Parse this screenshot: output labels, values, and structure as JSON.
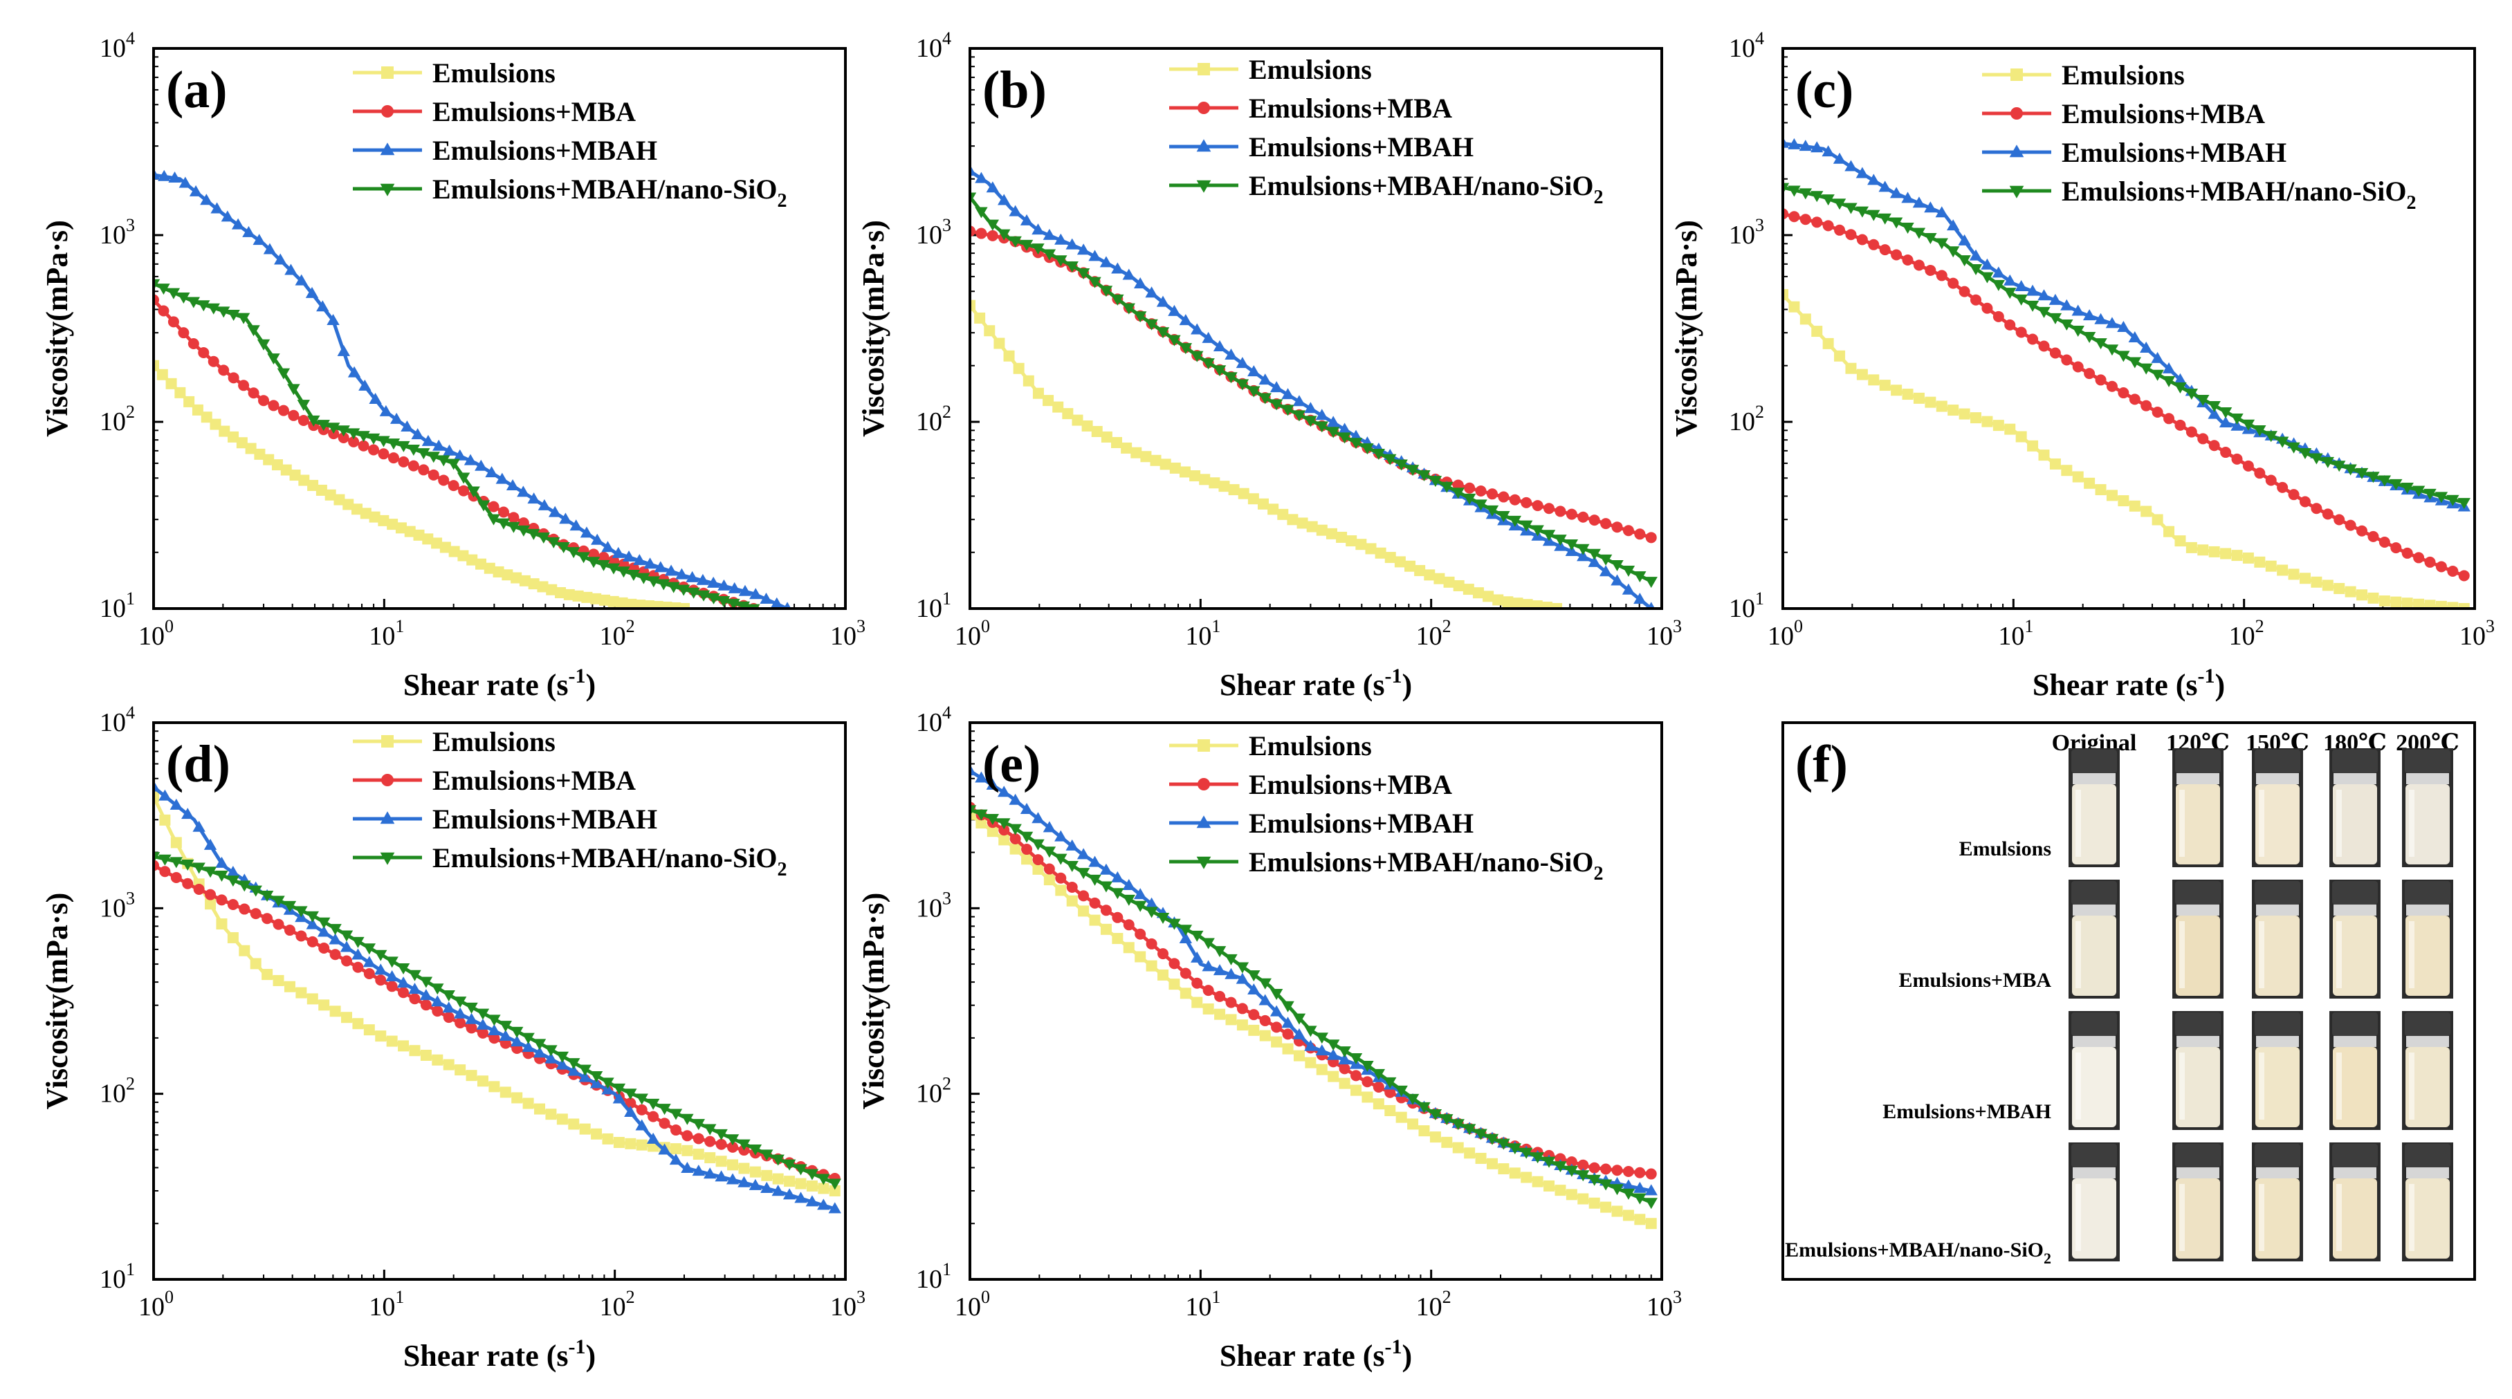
{
  "figure": {
    "series_names": [
      "Emulsions",
      "Emulsions+MBA",
      "Emulsions+MBAH",
      "Emulsions+MBAH/nano-SiO"
    ],
    "subscript": "2",
    "colors": {
      "Emulsions": "#f2ea7e",
      "Emulsions+MBA": "#e8393c",
      "Emulsions+MBAH": "#2c6fd4",
      "Emulsions+MBAH/nano-SiO2": "#1f8a1f"
    },
    "markers": {
      "Emulsions": "square",
      "Emulsions+MBA": "circle",
      "Emulsions+MBAH": "triangle-up",
      "Emulsions+MBAH/nano-SiO2": "triangle-down"
    }
  },
  "chart_data": [
    {
      "panel": "(a)",
      "type": "line",
      "xscale": "log",
      "yscale": "log",
      "xlabel": "Shear rate (s",
      "xlabel_sup": "-1",
      "xlabel_end": ")",
      "ylabel": "Viscosity(mPa·s)",
      "xlim": [
        1,
        1000
      ],
      "ylim": [
        10,
        10000
      ],
      "legend": "top-right",
      "xticks": [
        {
          "b": "10",
          "e": "0"
        },
        {
          "b": "10",
          "e": "1"
        },
        {
          "b": "10",
          "e": "2"
        },
        {
          "b": "10",
          "e": "3"
        }
      ],
      "yticks": [
        {
          "b": "10",
          "e": "1"
        },
        {
          "b": "10",
          "e": "2"
        },
        {
          "b": "10",
          "e": "3"
        },
        {
          "b": "10",
          "e": "4"
        }
      ],
      "series": [
        {
          "name": "Emulsions",
          "x": [
            1,
            1.5,
            2,
            3,
            5,
            8,
            15,
            30,
            60,
            120,
            200
          ],
          "y": [
            200,
            120,
            90,
            65,
            45,
            33,
            24,
            16,
            12,
            10.5,
            10
          ]
        },
        {
          "name": "Emulsions+MBA",
          "x": [
            1,
            1.5,
            2,
            3,
            5,
            8,
            15,
            30,
            60,
            100,
            200,
            400
          ],
          "y": [
            450,
            260,
            190,
            130,
            95,
            75,
            55,
            35,
            22,
            18,
            13,
            10
          ]
        },
        {
          "name": "Emulsions+MBAH",
          "x": [
            1,
            1.3,
            2,
            3,
            4.5,
            6,
            7,
            10,
            15,
            25,
            40,
            70,
            100,
            200,
            400,
            560
          ],
          "y": [
            2100,
            2000,
            1300,
            900,
            550,
            350,
            200,
            115,
            80,
            60,
            42,
            27,
            20,
            15,
            12,
            10
          ]
        },
        {
          "name": "Emulsions+MBAH/nano-SiO2",
          "x": [
            1,
            1.5,
            2.5,
            3.5,
            5,
            8,
            12,
            20,
            30,
            50,
            80,
            150,
            300,
            400
          ],
          "y": [
            550,
            440,
            360,
            200,
            100,
            85,
            75,
            60,
            30,
            24,
            18,
            14,
            11,
            10
          ]
        }
      ]
    },
    {
      "panel": "(b)",
      "type": "line",
      "xscale": "log",
      "yscale": "log",
      "xlabel": "Shear rate (s",
      "xlabel_sup": "-1",
      "xlabel_end": ")",
      "ylabel": "Viscosity(mPa·s)",
      "xlim": [
        1,
        1000
      ],
      "ylim": [
        10,
        10000
      ],
      "legend": "top-right",
      "xticks": [
        {
          "b": "10",
          "e": "0"
        },
        {
          "b": "10",
          "e": "1"
        },
        {
          "b": "10",
          "e": "2"
        },
        {
          "b": "10",
          "e": "3"
        }
      ],
      "yticks": [
        {
          "b": "10",
          "e": "1"
        },
        {
          "b": "10",
          "e": "2"
        },
        {
          "b": "10",
          "e": "3"
        },
        {
          "b": "10",
          "e": "4"
        }
      ],
      "series": [
        {
          "name": "Emulsions",
          "x": [
            1,
            1.5,
            2,
            3,
            5,
            10,
            15,
            25,
            50,
            100,
            200,
            350
          ],
          "y": [
            420,
            220,
            140,
            100,
            70,
            50,
            42,
            30,
            22,
            15,
            11,
            10
          ]
        },
        {
          "name": "Emulsions+MBA",
          "x": [
            1,
            1.5,
            2,
            3,
            5,
            10,
            20,
            50,
            100,
            200,
            500,
            900
          ],
          "y": [
            1050,
            950,
            800,
            650,
            400,
            220,
            130,
            75,
            50,
            40,
            30,
            24
          ]
        },
        {
          "name": "Emulsions+MBAH",
          "x": [
            1,
            1.2,
            1.5,
            2,
            3,
            5,
            10,
            20,
            50,
            100,
            200,
            500,
            900
          ],
          "y": [
            2200,
            1900,
            1400,
            1050,
            850,
            600,
            300,
            160,
            80,
            50,
            30,
            18,
            10
          ]
        },
        {
          "name": "Emulsions+MBAH/nano-SiO2",
          "x": [
            1,
            1.2,
            1.5,
            2,
            3,
            5,
            10,
            20,
            50,
            100,
            200,
            500,
            900
          ],
          "y": [
            1600,
            1200,
            950,
            850,
            650,
            400,
            220,
            130,
            75,
            50,
            32,
            20,
            14
          ]
        }
      ]
    },
    {
      "panel": "(c)",
      "type": "line",
      "xscale": "log",
      "yscale": "log",
      "xlabel": "Shear rate (s",
      "xlabel_sup": "-1",
      "xlabel_end": ")",
      "ylabel": "Viscosity(mPa·s)",
      "xlim": [
        1,
        1000
      ],
      "ylim": [
        10,
        10000
      ],
      "legend": "top-right",
      "xticks": [
        {
          "b": "10",
          "e": "0"
        },
        {
          "b": "10",
          "e": "1"
        },
        {
          "b": "10",
          "e": "2"
        },
        {
          "b": "10",
          "e": "3"
        }
      ],
      "yticks": [
        {
          "b": "10",
          "e": "1"
        },
        {
          "b": "10",
          "e": "2"
        },
        {
          "b": "10",
          "e": "3"
        },
        {
          "b": "10",
          "e": "4"
        }
      ],
      "series": [
        {
          "name": "Emulsions",
          "x": [
            1,
            1.5,
            2,
            3,
            5,
            10,
            15,
            25,
            40,
            50,
            60,
            100,
            200,
            400,
            900
          ],
          "y": [
            480,
            280,
            190,
            150,
            120,
            90,
            60,
            42,
            32,
            24,
            21,
            19,
            14,
            11,
            10
          ]
        },
        {
          "name": "Emulsions+MBA",
          "x": [
            1,
            1.5,
            2,
            3,
            5,
            10,
            20,
            50,
            100,
            200,
            500,
            900
          ],
          "y": [
            1300,
            1150,
            1000,
            800,
            600,
            320,
            190,
            100,
            60,
            35,
            20,
            15
          ]
        },
        {
          "name": "Emulsions+MBAH",
          "x": [
            1,
            1.5,
            2,
            3,
            5,
            7,
            10,
            15,
            20,
            30,
            50,
            80,
            150,
            300,
            600,
            900
          ],
          "y": [
            3100,
            2900,
            2300,
            1700,
            1300,
            750,
            550,
            450,
            380,
            320,
            180,
            100,
            80,
            55,
            40,
            35
          ]
        },
        {
          "name": "Emulsions+MBAH/nano-SiO2",
          "x": [
            1,
            1.5,
            2,
            3,
            5,
            7,
            10,
            20,
            50,
            100,
            200,
            500,
            900
          ],
          "y": [
            1800,
            1600,
            1400,
            1200,
            900,
            650,
            480,
            300,
            160,
            100,
            65,
            45,
            37
          ]
        }
      ]
    },
    {
      "panel": "(d)",
      "type": "line",
      "xscale": "log",
      "yscale": "log",
      "xlabel": "Shear rate (s",
      "xlabel_sup": "-1",
      "xlabel_end": ")",
      "ylabel": "Viscosity(mPa·s)",
      "xlim": [
        1,
        1000
      ],
      "ylim": [
        10,
        10000
      ],
      "legend": "top-right",
      "xticks": [
        {
          "b": "10",
          "e": "0"
        },
        {
          "b": "10",
          "e": "1"
        },
        {
          "b": "10",
          "e": "2"
        },
        {
          "b": "10",
          "e": "3"
        }
      ],
      "yticks": [
        {
          "b": "10",
          "e": "1"
        },
        {
          "b": "10",
          "e": "2"
        },
        {
          "b": "10",
          "e": "3"
        },
        {
          "b": "10",
          "e": "4"
        }
      ],
      "series": [
        {
          "name": "Emulsions",
          "x": [
            1,
            1.2,
            1.5,
            2,
            3,
            5,
            10,
            20,
            50,
            100,
            200,
            500,
            900
          ],
          "y": [
            4000,
            2500,
            1500,
            800,
            450,
            320,
            200,
            140,
            80,
            55,
            50,
            35,
            30
          ]
        },
        {
          "name": "Emulsions+MBA",
          "x": [
            1,
            1.5,
            2,
            3,
            5,
            10,
            20,
            50,
            100,
            200,
            500,
            900
          ],
          "y": [
            1700,
            1300,
            1100,
            900,
            650,
            400,
            250,
            150,
            100,
            60,
            45,
            35
          ]
        },
        {
          "name": "Emulsions+MBAH",
          "x": [
            1,
            1.5,
            2,
            3,
            5,
            10,
            20,
            50,
            100,
            150,
            200,
            500,
            900
          ],
          "y": [
            4500,
            3000,
            1700,
            1200,
            800,
            450,
            280,
            160,
            100,
            55,
            40,
            30,
            24
          ]
        },
        {
          "name": "Emulsions+MBAH/nano-SiO2",
          "x": [
            1,
            1.5,
            2,
            3,
            5,
            10,
            20,
            50,
            100,
            200,
            500,
            900
          ],
          "y": [
            1900,
            1700,
            1500,
            1200,
            900,
            550,
            330,
            180,
            110,
            75,
            45,
            33
          ]
        }
      ]
    },
    {
      "panel": "(e)",
      "type": "line",
      "xscale": "log",
      "yscale": "log",
      "xlabel": "Shear rate (s",
      "xlabel_sup": "-1",
      "xlabel_end": ")",
      "ylabel": "Viscosity(mPa·s)",
      "xlim": [
        1,
        1000
      ],
      "ylim": [
        10,
        10000
      ],
      "legend": "top-right",
      "xticks": [
        {
          "b": "10",
          "e": "0"
        },
        {
          "b": "10",
          "e": "1"
        },
        {
          "b": "10",
          "e": "2"
        },
        {
          "b": "10",
          "e": "3"
        }
      ],
      "yticks": [
        {
          "b": "10",
          "e": "1"
        },
        {
          "b": "10",
          "e": "2"
        },
        {
          "b": "10",
          "e": "3"
        },
        {
          "b": "10",
          "e": "4"
        }
      ],
      "series": [
        {
          "name": "Emulsions",
          "x": [
            1,
            1.5,
            2,
            3,
            5,
            10,
            20,
            50,
            100,
            200,
            500,
            900
          ],
          "y": [
            3200,
            2200,
            1600,
            1000,
            600,
            300,
            200,
            100,
            60,
            40,
            26,
            20
          ]
        },
        {
          "name": "Emulsions+MBA",
          "x": [
            1,
            1.5,
            2,
            3,
            5,
            10,
            20,
            50,
            100,
            200,
            500,
            900
          ],
          "y": [
            3500,
            2500,
            1800,
            1200,
            800,
            380,
            240,
            120,
            80,
            55,
            40,
            37
          ]
        },
        {
          "name": "Emulsions+MBAH",
          "x": [
            1,
            1.5,
            2,
            3,
            5,
            8,
            10,
            15,
            20,
            30,
            50,
            100,
            200,
            500,
            900
          ],
          "y": [
            5500,
            4000,
            3000,
            2000,
            1300,
            800,
            500,
            420,
            300,
            180,
            140,
            80,
            55,
            35,
            30
          ]
        },
        {
          "name": "Emulsions+MBAH/nano-SiO2",
          "x": [
            1,
            1.5,
            2,
            3,
            5,
            10,
            20,
            30,
            50,
            100,
            200,
            500,
            900
          ],
          "y": [
            3400,
            2800,
            2200,
            1600,
            1100,
            700,
            380,
            220,
            150,
            80,
            55,
            35,
            26
          ]
        }
      ]
    }
  ],
  "photos": {
    "panel": "(f)",
    "columns": [
      "Original",
      "120℃",
      "150℃",
      "180℃",
      "200℃"
    ],
    "rows": [
      "Emulsions",
      "Emulsions+MBA",
      "Emulsions+MBAH",
      "Emulsions+MBAH/nano-SiO"
    ],
    "subscript": "2",
    "liquid_colors": [
      [
        "#efeadb",
        "#efe4c8",
        "#f1e7cf",
        "#ece6d8",
        "#ede8dc"
      ],
      [
        "#ede7d3",
        "#eddfbd",
        "#efe4c8",
        "#efe5ca",
        "#efe3c4"
      ],
      [
        "#f3f0e6",
        "#eee8d6",
        "#f0e6c8",
        "#f0e2c0",
        "#efe6cc"
      ],
      [
        "#f1ede2",
        "#eee2c4",
        "#efe3c2",
        "#efe2c2",
        "#efe6cc"
      ]
    ]
  }
}
